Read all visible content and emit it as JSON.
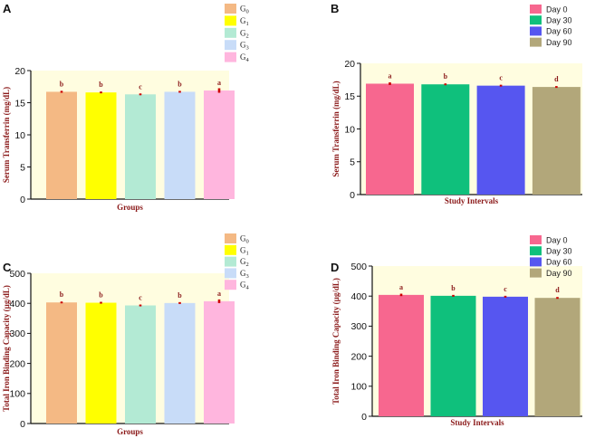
{
  "chart_data": [
    {
      "panel": "A",
      "type": "bar",
      "title": "",
      "xlabel": "Groups",
      "ylabel": "Serum Transferrin (mg/dL)",
      "ylim": [
        0,
        20
      ],
      "yticks": [
        0,
        5,
        10,
        15,
        20
      ],
      "categories": [
        "G0",
        "G1",
        "G2",
        "G3",
        "G4"
      ],
      "values": [
        16.7,
        16.6,
        16.3,
        16.7,
        16.9
      ],
      "errors": [
        0.15,
        0.1,
        0.1,
        0.1,
        0.35
      ],
      "sig_labels": [
        "b",
        "b",
        "c",
        "b",
        "a"
      ],
      "colors": [
        "#f4b984",
        "#ffff00",
        "#b3ead4",
        "#c8dcf8",
        "#ffb6de"
      ],
      "legend": [
        {
          "base": "G",
          "sub": "0",
          "color": "#f4b984"
        },
        {
          "base": "G",
          "sub": "1",
          "color": "#ffff00"
        },
        {
          "base": "G",
          "sub": "2",
          "color": "#b3ead4"
        },
        {
          "base": "G",
          "sub": "3",
          "color": "#c8dcf8"
        },
        {
          "base": "G",
          "sub": "4",
          "color": "#ffb6de"
        }
      ],
      "legend_position": "top-right"
    },
    {
      "panel": "B",
      "type": "bar",
      "title": "",
      "xlabel": "Study Intervals",
      "ylabel": "Serum Transferrin (mg/dL)",
      "ylim": [
        0,
        20
      ],
      "yticks": [
        0,
        5,
        10,
        15,
        20
      ],
      "categories": [
        "Day 0",
        "Day 30",
        "Day 60",
        "Day 90"
      ],
      "values": [
        16.9,
        16.8,
        16.6,
        16.4
      ],
      "errors": [
        0.2,
        0.1,
        0.1,
        0.1
      ],
      "sig_labels": [
        "a",
        "b",
        "c",
        "d"
      ],
      "colors": [
        "#f7678f",
        "#0fc07c",
        "#5656f0",
        "#b2a77a"
      ],
      "legend": [
        {
          "label": "Day 0",
          "color": "#f7678f"
        },
        {
          "label": "Day 30",
          "color": "#0fc07c"
        },
        {
          "label": "Day 60",
          "color": "#5656f0"
        },
        {
          "label": "Day 90",
          "color": "#b2a77a"
        }
      ],
      "legend_position": "top-right"
    },
    {
      "panel": "C",
      "type": "bar",
      "title": "",
      "xlabel": "Groups",
      "ylabel": "Total Iron Binding Capacity (µg/dL)",
      "ylim": [
        0,
        500
      ],
      "yticks": [
        0,
        100,
        200,
        300,
        400,
        500
      ],
      "categories": [
        "G0",
        "G1",
        "G2",
        "G3",
        "G4"
      ],
      "values": [
        403,
        402,
        393,
        401,
        407
      ],
      "errors": [
        3,
        3,
        2,
        2,
        6
      ],
      "sig_labels": [
        "b",
        "b",
        "c",
        "b",
        "a"
      ],
      "colors": [
        "#f4b984",
        "#ffff00",
        "#b3ead4",
        "#c8dcf8",
        "#ffb6de"
      ],
      "legend": [
        {
          "base": "G",
          "sub": "0",
          "color": "#f4b984"
        },
        {
          "base": "G",
          "sub": "1",
          "color": "#ffff00"
        },
        {
          "base": "G",
          "sub": "2",
          "color": "#b3ead4"
        },
        {
          "base": "G",
          "sub": "3",
          "color": "#c8dcf8"
        },
        {
          "base": "G",
          "sub": "4",
          "color": "#ffb6de"
        }
      ],
      "legend_position": "top-right"
    },
    {
      "panel": "D",
      "type": "bar",
      "title": "",
      "xlabel": "Study Intervals",
      "ylabel": "Total Iron Binding Capacity (µg/dL)",
      "ylim": [
        0,
        500
      ],
      "yticks": [
        0,
        100,
        200,
        300,
        400,
        500
      ],
      "categories": [
        "Day 0",
        "Day 30",
        "Day 60",
        "Day 90"
      ],
      "values": [
        404,
        401,
        398,
        394
      ],
      "errors": [
        4,
        3,
        2,
        2
      ],
      "sig_labels": [
        "a",
        "b",
        "c",
        "d"
      ],
      "colors": [
        "#f7678f",
        "#0fc07c",
        "#5656f0",
        "#b2a77a"
      ],
      "legend": [
        {
          "label": "Day 0",
          "color": "#f7678f"
        },
        {
          "label": "Day 30",
          "color": "#0fc07c"
        },
        {
          "label": "Day 60",
          "color": "#5656f0"
        },
        {
          "label": "Day 90",
          "color": "#b2a77a"
        }
      ],
      "legend_position": "top-right"
    }
  ],
  "style": {
    "plot_background": "#fffde0",
    "axis_title_color": "#8b1a1a",
    "error_color": "#cc0000"
  }
}
